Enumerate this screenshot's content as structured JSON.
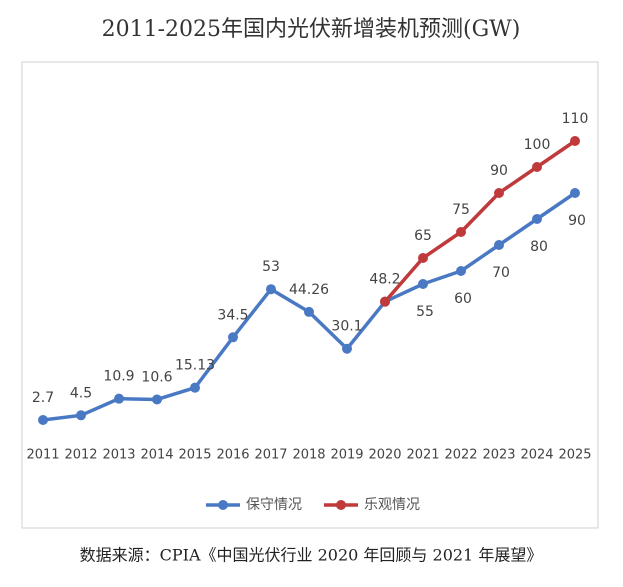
{
  "chart_data": {
    "type": "line",
    "title": "2011-2025年国内光伏新增装机预测(GW)",
    "categories": [
      "2011",
      "2012",
      "2013",
      "2014",
      "2015",
      "2016",
      "2017",
      "2018",
      "2019",
      "2020",
      "2021",
      "2022",
      "2023",
      "2024",
      "2025"
    ],
    "series": [
      {
        "name": "保守情况",
        "color": "#4a79c4",
        "values": [
          2.7,
          4.5,
          10.9,
          10.6,
          15.13,
          34.5,
          53,
          44.26,
          30.1,
          48.2,
          55,
          60,
          70,
          80,
          90
        ]
      },
      {
        "name": "乐观情况",
        "color": "#c0393b",
        "values": [
          null,
          null,
          null,
          null,
          null,
          null,
          null,
          null,
          null,
          48.2,
          65,
          75,
          90,
          100,
          110
        ]
      }
    ],
    "ylim": [
      0,
      140
    ],
    "legend": "bottom",
    "source": "数据来源：CPIA《中国光伏行业 2020 年回顾与 2021 年展望》"
  }
}
